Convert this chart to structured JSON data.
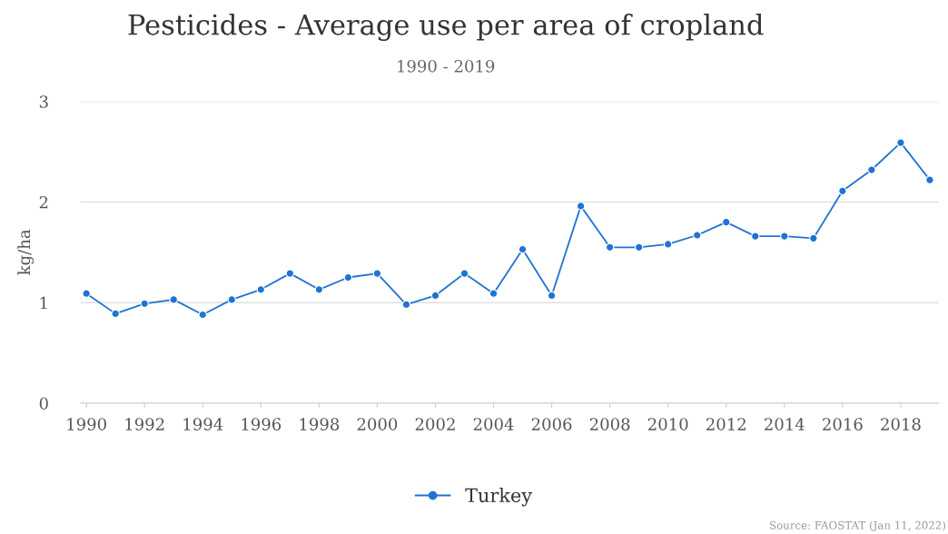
{
  "chart_data": {
    "type": "line",
    "title": "Pesticides - Average use per area of cropland",
    "subtitle": "1990 - 2019",
    "ylabel": "kg/ha",
    "x": [
      1990,
      1991,
      1992,
      1993,
      1994,
      1995,
      1996,
      1997,
      1998,
      1999,
      2000,
      2001,
      2002,
      2003,
      2004,
      2005,
      2006,
      2007,
      2008,
      2009,
      2010,
      2011,
      2012,
      2013,
      2014,
      2015,
      2016,
      2017,
      2018,
      2019
    ],
    "series": [
      {
        "name": "Turkey",
        "color": "#1f73d2",
        "values": [
          1.09,
          0.89,
          0.99,
          1.03,
          0.88,
          1.03,
          1.13,
          1.29,
          1.13,
          1.25,
          1.29,
          0.98,
          1.07,
          1.29,
          1.09,
          1.53,
          1.07,
          1.96,
          1.55,
          1.55,
          1.58,
          1.67,
          1.8,
          1.66,
          1.66,
          1.64,
          2.11,
          2.32,
          2.59,
          2.22
        ]
      }
    ],
    "xlim": [
      1989.8,
      2019.3
    ],
    "xticks": [
      1990,
      1992,
      1994,
      1996,
      1998,
      2000,
      2002,
      2004,
      2006,
      2008,
      2010,
      2012,
      2014,
      2016,
      2018
    ],
    "ylim": [
      0,
      3
    ],
    "yticks": [
      0,
      1,
      2,
      3
    ],
    "grid": "y",
    "legend": "bottom",
    "marker": "circle",
    "line_style": "solid",
    "annotations": [
      "Source: FAOSTAT (Jan 11, 2022)"
    ]
  }
}
